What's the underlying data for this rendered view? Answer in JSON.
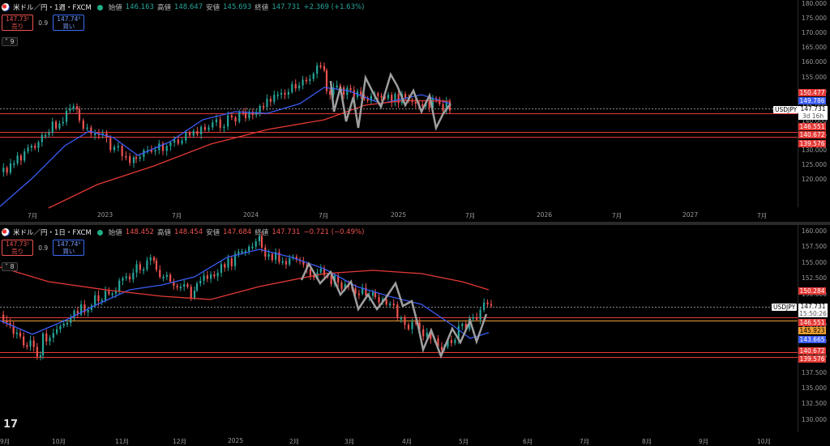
{
  "colors": {
    "bg": "#000000",
    "up": "#26a69a",
    "down": "#ef5350",
    "ma_fast": "#3b5cf5",
    "ma_slow": "#e53935",
    "sketch": "#9e9e9e",
    "hline": "#e53935",
    "orange": "#f0a030"
  },
  "top": {
    "title": "米ドル／円・1週・FXCM",
    "open_k": "始値",
    "open": "146.163",
    "high_k": "高値",
    "high": "148.647",
    "low_k": "安値",
    "low": "145.693",
    "close_k": "終値",
    "close": "147.731",
    "change": "+2.369 (+1.63%)",
    "sell_price": "147.73¹",
    "sell_label": "売り",
    "spread": "0.9",
    "buy_price": "147.74⁰",
    "buy_label": "買い",
    "indicators": "9",
    "yticks": [
      "180.000",
      "175.000",
      "170.000",
      "165.000",
      "160.000",
      "155.000",
      "150.000",
      "145.000",
      "140.000",
      "135.000",
      "130.000",
      "125.000",
      "120.000"
    ],
    "xticks": [
      "7月",
      "2023",
      "7月",
      "2024",
      "7月",
      "2025",
      "7月",
      "2026",
      "7月",
      "2027",
      "7月"
    ],
    "symbol": "USDJPY",
    "current": "147.731",
    "countdown": "3d 16h",
    "labels": [
      {
        "text": "150.477",
        "color": "#e53935"
      },
      {
        "text": "149.786",
        "color": "#3b5cf5"
      },
      {
        "text": "146.551",
        "color": "#e53935"
      },
      {
        "text": "140.672",
        "color": "#e53935"
      },
      {
        "text": "139.576",
        "color": "#e53935"
      }
    ]
  },
  "bottom": {
    "title": "米ドル／円・1日・FXCM",
    "open_k": "始値",
    "open": "148.452",
    "high_k": "高値",
    "high": "148.454",
    "low_k": "安値",
    "low": "147.684",
    "close_k": "終値",
    "close": "147.731",
    "change": "−0.721 (−0.49%)",
    "sell_price": "147.73¹",
    "sell_label": "売り",
    "spread": "0.9",
    "buy_price": "147.74⁰",
    "buy_label": "買い",
    "indicators": "8",
    "yticks": [
      "160.000",
      "157.500",
      "155.000",
      "152.500",
      "150.000",
      "147.500",
      "145.000",
      "142.500",
      "140.000",
      "137.500",
      "135.000",
      "132.500",
      "130.000"
    ],
    "xticks": [
      "9月",
      "10月",
      "11月",
      "12月",
      "2025",
      "2月",
      "3月",
      "4月",
      "5月",
      "6月",
      "7月",
      "8月",
      "9月",
      "10月"
    ],
    "symbol": "USDJPY",
    "current": "147.731",
    "countdown": "15:50:26",
    "labels": [
      {
        "text": "150.284",
        "color": "#e53935"
      },
      {
        "text": "146.551",
        "color": "#e53935"
      },
      {
        "text": "145.923",
        "color": "#f0a030"
      },
      {
        "text": "143.665",
        "color": "#3b5cf5"
      },
      {
        "text": "140.672",
        "color": "#e53935"
      },
      {
        "text": "139.576",
        "color": "#e53935"
      }
    ]
  },
  "logo": "17"
}
